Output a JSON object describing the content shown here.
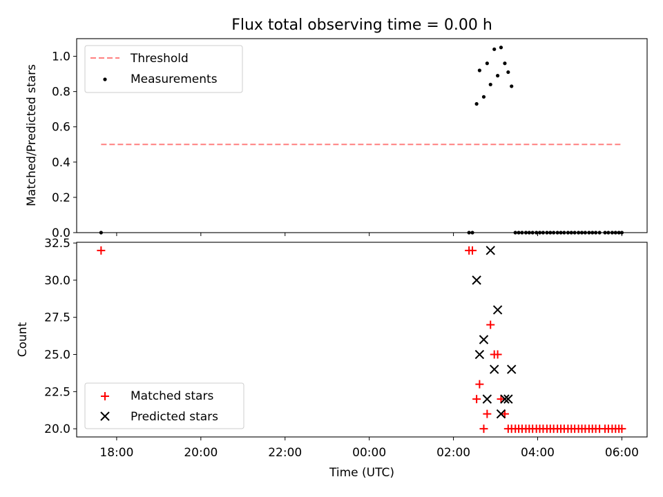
{
  "chart_data": [
    {
      "type": "scatter",
      "title": "Flux total observing time = 0.00 h",
      "xlabel": "",
      "ylabel": "Matched/Predicted stars",
      "xlim": [
        17.05,
        30.6
      ],
      "ylim": [
        0.0,
        1.1
      ],
      "yticks": [
        0.0,
        0.2,
        0.4,
        0.6,
        0.8,
        1.0
      ],
      "ytick_labels": [
        "0.0",
        "0.2",
        "0.4",
        "0.6",
        "0.8",
        "1.0"
      ],
      "legend_position": "upper-left",
      "colors": {
        "threshold": "#ff7f7f",
        "measurements": "#000000"
      },
      "threshold": {
        "name": "Threshold",
        "y": 0.5,
        "x_range": [
          17.63,
          30.0
        ]
      },
      "series": [
        {
          "name": "Measurements",
          "x": [
            17.63,
            26.37,
            26.45,
            26.55,
            26.62,
            26.72,
            26.8,
            26.88,
            26.97,
            27.05,
            27.13,
            27.22,
            27.3,
            27.38,
            27.47,
            27.55,
            27.63,
            27.72,
            27.8,
            27.88,
            27.97,
            28.05,
            28.13,
            28.22,
            28.3,
            28.38,
            28.47,
            28.55,
            28.63,
            28.72,
            28.8,
            28.88,
            28.97,
            29.05,
            29.13,
            29.22,
            29.3,
            29.38,
            29.47,
            29.6,
            29.68,
            29.77,
            29.85,
            29.93,
            30.0
          ],
          "y": [
            0.0,
            0.0,
            0.0,
            0.73,
            0.92,
            0.77,
            0.96,
            0.84,
            1.04,
            0.89,
            1.05,
            0.96,
            0.91,
            0.83,
            0.0,
            0.0,
            0.0,
            0.0,
            0.0,
            0.0,
            0.0,
            0.0,
            0.0,
            0.0,
            0.0,
            0.0,
            0.0,
            0.0,
            0.0,
            0.0,
            0.0,
            0.0,
            0.0,
            0.0,
            0.0,
            0.0,
            0.0,
            0.0,
            0.0,
            0.0,
            0.0,
            0.0,
            0.0,
            0.0,
            0.0
          ]
        }
      ]
    },
    {
      "type": "scatter",
      "title": "",
      "xlabel": "Time (UTC)",
      "ylabel": "Count",
      "xlim": [
        17.05,
        30.6
      ],
      "ylim": [
        19.45,
        32.55
      ],
      "xticks": [
        18,
        20,
        22,
        24,
        26,
        28,
        30
      ],
      "xtick_labels": [
        "18:00",
        "20:00",
        "22:00",
        "00:00",
        "02:00",
        "04:00",
        "06:00"
      ],
      "yticks": [
        20.0,
        22.5,
        25.0,
        27.5,
        30.0,
        32.5
      ],
      "ytick_labels": [
        "20.0",
        "22.5",
        "25.0",
        "27.5",
        "30.0",
        "32.5"
      ],
      "legend_position": "lower-left",
      "colors": {
        "matched": "#ff0000",
        "predicted": "#000000"
      },
      "series": [
        {
          "name": "Matched stars",
          "x": [
            17.63,
            26.37,
            26.45,
            26.55,
            26.62,
            26.72,
            26.8,
            26.88,
            26.97,
            27.05,
            27.13,
            27.22,
            27.3,
            27.38,
            27.47,
            27.55,
            27.63,
            27.72,
            27.8,
            27.88,
            27.97,
            28.05,
            28.13,
            28.22,
            28.3,
            28.38,
            28.47,
            28.55,
            28.63,
            28.72,
            28.8,
            28.88,
            28.97,
            29.05,
            29.13,
            29.22,
            29.3,
            29.38,
            29.47,
            29.6,
            29.68,
            29.77,
            29.85,
            29.93,
            30.0
          ],
          "y": [
            32,
            32,
            32,
            22,
            23,
            20,
            21,
            27,
            25,
            25,
            22,
            21,
            20,
            20,
            20,
            20,
            20,
            20,
            20,
            20,
            20,
            20,
            20,
            20,
            20,
            20,
            20,
            20,
            20,
            20,
            20,
            20,
            20,
            20,
            20,
            20,
            20,
            20,
            20,
            20,
            20,
            20,
            20,
            20,
            20
          ]
        },
        {
          "name": "Predicted stars",
          "x": [
            26.55,
            26.62,
            26.72,
            26.8,
            26.88,
            26.97,
            27.05,
            27.13,
            27.22,
            27.3,
            27.38
          ],
          "y": [
            30,
            25,
            26,
            22,
            32,
            24,
            28,
            21,
            22,
            22,
            24
          ]
        }
      ]
    }
  ]
}
